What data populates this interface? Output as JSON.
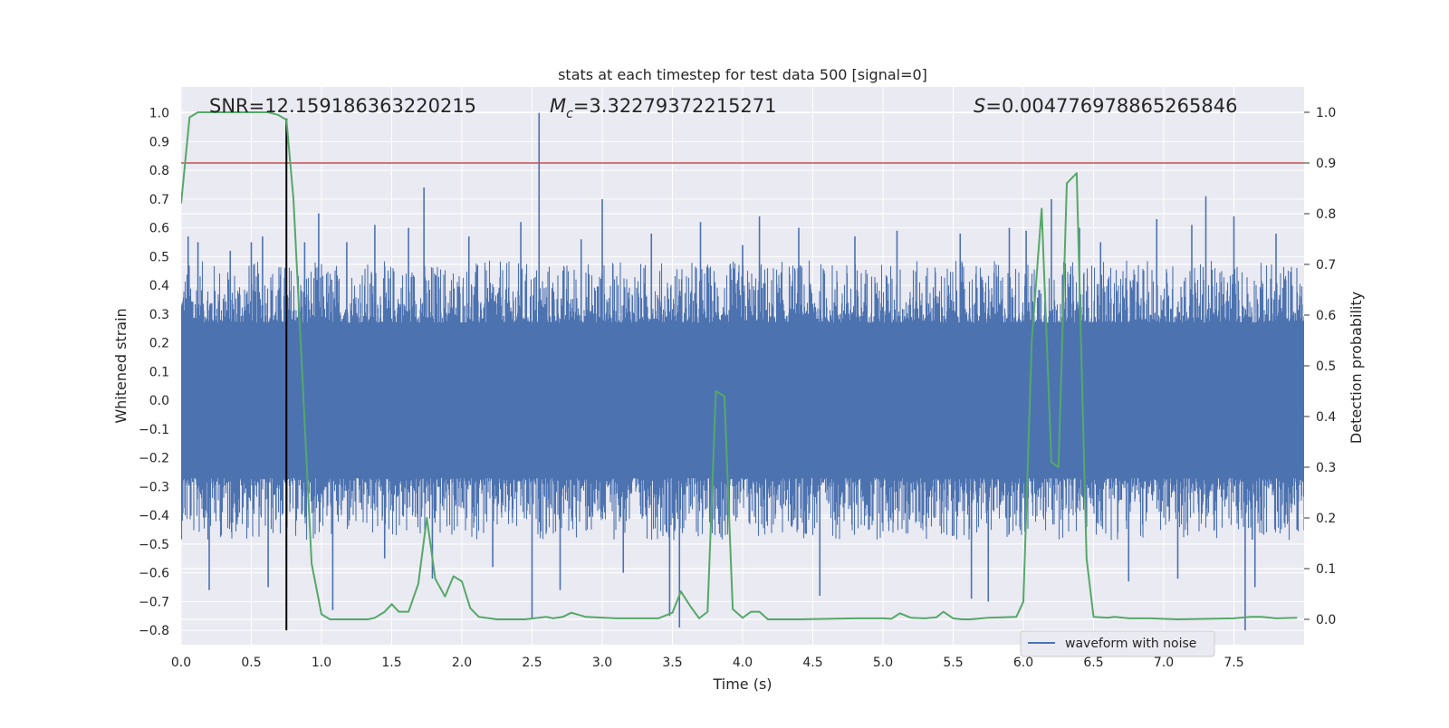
{
  "chart_data": {
    "type": "line",
    "title": "stats at each timestep for test data 500 [signal=0]",
    "xlabel": "Time (s)",
    "ylabel": "Whitened strain",
    "y2label": "Detection probability",
    "xlim": [
      0.0,
      8.0
    ],
    "ylim": [
      -0.85,
      1.09
    ],
    "y2lim": [
      -0.05,
      1.05
    ],
    "xticks": [
      0.0,
      0.5,
      1.0,
      1.5,
      2.0,
      2.5,
      3.0,
      3.5,
      4.0,
      4.5,
      5.0,
      5.5,
      6.0,
      6.5,
      7.0,
      7.5
    ],
    "yticks": [
      1.0,
      0.9,
      0.8,
      0.7,
      0.6,
      0.5,
      0.4,
      0.3,
      0.2,
      0.1,
      0.0,
      -0.1,
      -0.2,
      -0.3,
      -0.4,
      -0.5,
      -0.6,
      -0.7,
      -0.8
    ],
    "y2ticks": [
      1.0,
      0.9,
      0.8,
      0.7,
      0.6,
      0.5,
      0.4,
      0.3,
      0.2,
      0.1,
      0.0
    ],
    "grid": true,
    "legend": {
      "entries": [
        "waveform with noise"
      ],
      "position": "lower-right"
    },
    "annotations": {
      "snr": "SNR=12.159186363220215",
      "mc_symbol": "M",
      "mc_sub": "c",
      "mc_value": "=3.32279372215271",
      "s_symbol": "S",
      "s_value": "=0.004776978865265846"
    },
    "threshold_line": {
      "axis": "right",
      "y": 0.9,
      "color": "#c44e52"
    },
    "marker_line": {
      "x": 0.75,
      "y_range": [
        -0.8,
        0.98
      ],
      "color": "#000000"
    },
    "series": [
      {
        "name": "waveform with noise",
        "axis": "left",
        "color": "#4c72b0",
        "style": "noise",
        "band_upper": 0.36,
        "band_lower": -0.36,
        "spikes": [
          {
            "x": 0.05,
            "y": 0.57
          },
          {
            "x": 0.12,
            "y": 0.55
          },
          {
            "x": 0.2,
            "y": -0.66
          },
          {
            "x": 0.35,
            "y": 0.52
          },
          {
            "x": 0.5,
            "y": 0.55
          },
          {
            "x": 0.58,
            "y": 0.57
          },
          {
            "x": 0.62,
            "y": -0.65
          },
          {
            "x": 0.75,
            "y": -0.55
          },
          {
            "x": 0.88,
            "y": 0.55
          },
          {
            "x": 0.98,
            "y": 0.65
          },
          {
            "x": 1.08,
            "y": -0.73
          },
          {
            "x": 1.18,
            "y": 0.55
          },
          {
            "x": 1.38,
            "y": 0.61
          },
          {
            "x": 1.45,
            "y": -0.55
          },
          {
            "x": 1.62,
            "y": 0.6
          },
          {
            "x": 1.73,
            "y": 0.74
          },
          {
            "x": 1.79,
            "y": -0.62
          },
          {
            "x": 2.05,
            "y": 0.57
          },
          {
            "x": 2.22,
            "y": -0.58
          },
          {
            "x": 2.42,
            "y": 0.62
          },
          {
            "x": 2.5,
            "y": -0.76
          },
          {
            "x": 2.55,
            "y": 1.0
          },
          {
            "x": 2.7,
            "y": -0.66
          },
          {
            "x": 2.85,
            "y": 0.56
          },
          {
            "x": 3.0,
            "y": 0.7
          },
          {
            "x": 3.15,
            "y": -0.6
          },
          {
            "x": 3.35,
            "y": 0.58
          },
          {
            "x": 3.48,
            "y": -0.75
          },
          {
            "x": 3.55,
            "y": -0.79
          },
          {
            "x": 3.7,
            "y": 0.62
          },
          {
            "x": 4.0,
            "y": 0.54
          },
          {
            "x": 4.12,
            "y": 0.64
          },
          {
            "x": 4.4,
            "y": 0.6
          },
          {
            "x": 4.55,
            "y": -0.68
          },
          {
            "x": 4.8,
            "y": 0.57
          },
          {
            "x": 5.1,
            "y": 0.59
          },
          {
            "x": 5.55,
            "y": 0.58
          },
          {
            "x": 5.63,
            "y": -0.69
          },
          {
            "x": 5.75,
            "y": -0.7
          },
          {
            "x": 5.9,
            "y": 0.6
          },
          {
            "x": 6.02,
            "y": 0.59
          },
          {
            "x": 6.2,
            "y": 0.7
          },
          {
            "x": 6.4,
            "y": 0.6
          },
          {
            "x": 6.55,
            "y": 0.55
          },
          {
            "x": 6.75,
            "y": -0.63
          },
          {
            "x": 6.95,
            "y": 0.63
          },
          {
            "x": 7.1,
            "y": -0.62
          },
          {
            "x": 7.2,
            "y": 0.61
          },
          {
            "x": 7.3,
            "y": 0.71
          },
          {
            "x": 7.5,
            "y": 0.64
          },
          {
            "x": 7.58,
            "y": -0.8
          },
          {
            "x": 7.65,
            "y": -0.65
          },
          {
            "x": 7.8,
            "y": 0.58
          },
          {
            "x": 7.95,
            "y": -0.45
          }
        ]
      },
      {
        "name": "detection probability",
        "axis": "right",
        "color": "#55a868",
        "x": [
          0.0,
          0.06,
          0.12,
          0.25,
          0.45,
          0.62,
          0.69,
          0.75,
          0.8,
          0.86,
          0.93,
          1.0,
          1.06,
          1.18,
          1.25,
          1.33,
          1.38,
          1.45,
          1.5,
          1.55,
          1.62,
          1.69,
          1.75,
          1.81,
          1.88,
          1.94,
          2.0,
          2.06,
          2.12,
          2.25,
          2.45,
          2.6,
          2.65,
          2.72,
          2.78,
          2.88,
          3.1,
          3.25,
          3.4,
          3.5,
          3.56,
          3.63,
          3.69,
          3.75,
          3.81,
          3.87,
          3.93,
          4.0,
          4.06,
          4.12,
          4.18,
          4.4,
          4.8,
          5.0,
          5.06,
          5.12,
          5.2,
          5.3,
          5.38,
          5.43,
          5.5,
          5.56,
          5.62,
          5.75,
          5.95,
          6.0,
          6.06,
          6.13,
          6.2,
          6.25,
          6.31,
          6.38,
          6.45,
          6.5,
          6.6,
          6.65,
          6.75,
          6.9,
          7.1,
          7.5,
          7.62,
          7.7,
          7.8,
          7.95
        ],
        "values": [
          0.82,
          0.99,
          1.0,
          1.0,
          1.0,
          1.0,
          0.995,
          0.985,
          0.83,
          0.5,
          0.11,
          0.01,
          0.0,
          0.0,
          0.0,
          0.0,
          0.003,
          0.015,
          0.03,
          0.015,
          0.015,
          0.07,
          0.2,
          0.08,
          0.045,
          0.085,
          0.075,
          0.022,
          0.005,
          0.0,
          0.0,
          0.005,
          0.002,
          0.005,
          0.013,
          0.005,
          0.002,
          0.002,
          0.002,
          0.013,
          0.055,
          0.025,
          0.002,
          0.015,
          0.45,
          0.44,
          0.02,
          0.003,
          0.015,
          0.015,
          0.0,
          0.0,
          0.002,
          0.002,
          0.001,
          0.012,
          0.003,
          0.002,
          0.004,
          0.015,
          0.002,
          0.0,
          0.0,
          0.003,
          0.005,
          0.035,
          0.55,
          0.81,
          0.31,
          0.3,
          0.86,
          0.88,
          0.12,
          0.005,
          0.003,
          0.005,
          0.002,
          0.002,
          0.0,
          0.002,
          0.005,
          0.005,
          0.002,
          0.003
        ]
      }
    ]
  }
}
